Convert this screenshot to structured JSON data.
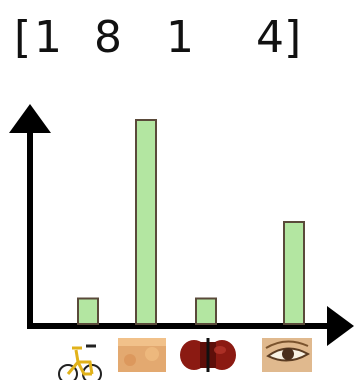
{
  "chart_data": {
    "type": "bar",
    "vector_label": {
      "open": "[",
      "close": "]"
    },
    "categories": [
      "bicycle",
      "skin",
      "violin",
      "eye"
    ],
    "values": [
      1,
      8,
      1,
      4
    ],
    "ylim": [
      0,
      8
    ],
    "bar_color": "#b3e6a1",
    "bar_stroke": "#5a4a3a",
    "axis_color": "#000000",
    "grid": false
  }
}
